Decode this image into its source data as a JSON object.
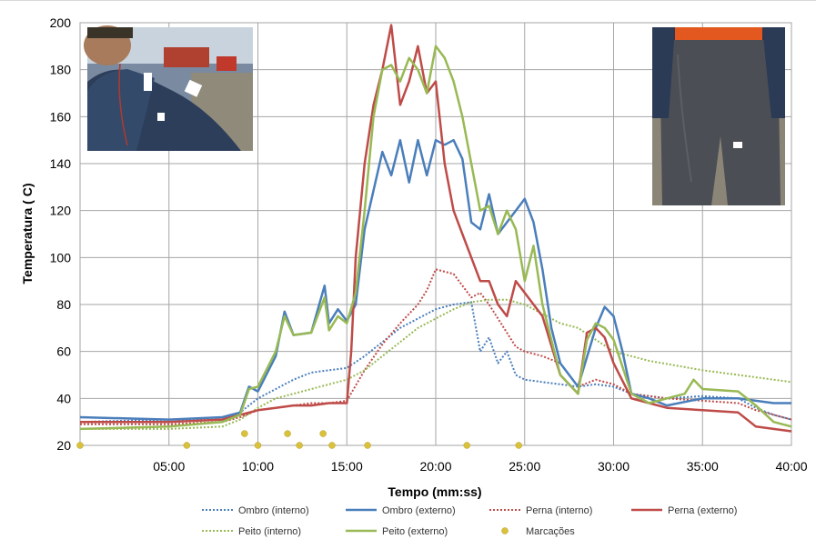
{
  "chart_data": {
    "type": "line",
    "xlabel": "Tempo (mm:ss)",
    "ylabel": "Temperatura ( C)",
    "x_unit": "mm:ss",
    "xlim": [
      "00:00",
      "40:00"
    ],
    "ylim": [
      20,
      200
    ],
    "x_tick_labels": [
      "05:00",
      "10:00",
      "15:00",
      "20:00",
      "25:00",
      "30:00",
      "35:00",
      "40:00"
    ],
    "y_tick_labels": [
      "20",
      "40",
      "60",
      "80",
      "100",
      "120",
      "140",
      "160",
      "180",
      "200"
    ],
    "grid": true,
    "legend_position": "bottom",
    "colors": {
      "ombro": "#4a7ebb",
      "perna": "#be4b48",
      "peito": "#98b954",
      "marcacoes": "#d9c13c"
    },
    "series": [
      {
        "name": "Ombro (interno)",
        "style": "dotted",
        "color": "#4a7ebb",
        "x": [
          "00:00",
          "05:00",
          "08:00",
          "09:00",
          "10:00",
          "11:00",
          "12:00",
          "13:00",
          "14:00",
          "15:00",
          "16:00",
          "17:00",
          "18:00",
          "19:00",
          "20:00",
          "21:00",
          "22:00",
          "22:30",
          "23:00",
          "23:30",
          "24:00",
          "24:30",
          "25:00",
          "26:00",
          "27:00",
          "28:00",
          "29:00",
          "30:00",
          "31:00",
          "33:00",
          "35:00",
          "37:00",
          "38:00",
          "39:00",
          "40:00"
        ],
        "y": [
          30,
          31,
          31,
          34,
          40,
          44,
          48,
          51,
          52,
          53,
          58,
          64,
          70,
          74,
          78,
          80,
          81,
          60,
          66,
          55,
          60,
          50,
          48,
          47,
          46,
          45,
          46,
          45,
          42,
          40,
          41,
          40,
          36,
          33,
          31
        ]
      },
      {
        "name": "Ombro (externo)",
        "style": "solid",
        "color": "#4a7ebb",
        "x": [
          "00:00",
          "05:00",
          "08:00",
          "09:00",
          "09:30",
          "10:00",
          "11:00",
          "11:30",
          "12:00",
          "13:00",
          "13:45",
          "14:00",
          "14:30",
          "15:00",
          "15:30",
          "16:00",
          "17:00",
          "17:30",
          "18:00",
          "18:30",
          "19:00",
          "19:30",
          "20:00",
          "20:30",
          "21:00",
          "21:30",
          "22:00",
          "22:30",
          "23:00",
          "23:30",
          "24:00",
          "24:30",
          "25:00",
          "25:30",
          "26:00",
          "26:30",
          "27:00",
          "28:00",
          "29:00",
          "29:30",
          "30:00",
          "30:30",
          "31:00",
          "32:00",
          "33:00",
          "35:00",
          "37:00",
          "38:00",
          "39:00",
          "40:00"
        ],
        "y": [
          32,
          31,
          32,
          34,
          45,
          43,
          58,
          77,
          67,
          68,
          88,
          72,
          78,
          73,
          80,
          112,
          145,
          135,
          150,
          132,
          150,
          135,
          150,
          148,
          150,
          142,
          115,
          112,
          127,
          110,
          115,
          120,
          125,
          115,
          95,
          70,
          55,
          45,
          70,
          79,
          75,
          60,
          42,
          40,
          37,
          40,
          40,
          39,
          38,
          38
        ]
      },
      {
        "name": "Perna (interno)",
        "style": "dotted",
        "color": "#be4b48",
        "x": [
          "00:00",
          "05:00",
          "08:00",
          "09:00",
          "10:00",
          "11:00",
          "12:00",
          "13:00",
          "14:00",
          "15:00",
          "16:00",
          "17:00",
          "18:00",
          "19:00",
          "19:30",
          "20:00",
          "21:00",
          "22:00",
          "22:30",
          "23:00",
          "24:00",
          "24:30",
          "25:00",
          "26:00",
          "27:00",
          "28:00",
          "29:00",
          "30:00",
          "31:00",
          "33:00",
          "35:00",
          "37:00",
          "38:00",
          "39:00",
          "40:00"
        ],
        "y": [
          29,
          29,
          30,
          32,
          35,
          36,
          37,
          38,
          38,
          39,
          52,
          63,
          72,
          80,
          86,
          95,
          93,
          83,
          85,
          80,
          68,
          62,
          60,
          58,
          55,
          45,
          48,
          46,
          42,
          40,
          39,
          38,
          35,
          33,
          31
        ]
      },
      {
        "name": "Perna (externo)",
        "style": "solid",
        "color": "#be4b48",
        "x": [
          "00:00",
          "05:00",
          "08:00",
          "09:00",
          "10:00",
          "11:00",
          "12:00",
          "13:00",
          "14:00",
          "15:00",
          "15:15",
          "15:30",
          "16:00",
          "16:30",
          "17:00",
          "17:30",
          "18:00",
          "18:30",
          "19:00",
          "19:30",
          "20:00",
          "20:30",
          "21:00",
          "21:30",
          "22:00",
          "22:30",
          "23:00",
          "23:30",
          "24:00",
          "24:30",
          "25:00",
          "25:30",
          "26:00",
          "27:00",
          "28:00",
          "28:30",
          "29:00",
          "29:30",
          "30:00",
          "31:00",
          "32:00",
          "33:00",
          "35:00",
          "37:00",
          "38:00",
          "39:00",
          "40:00"
        ],
        "y": [
          30,
          30,
          31,
          33,
          35,
          36,
          37,
          37,
          38,
          38,
          60,
          100,
          140,
          165,
          180,
          199,
          165,
          175,
          190,
          170,
          175,
          140,
          120,
          110,
          100,
          90,
          90,
          80,
          75,
          90,
          85,
          80,
          75,
          50,
          42,
          68,
          70,
          66,
          55,
          40,
          38,
          36,
          35,
          34,
          28,
          27,
          26
        ]
      },
      {
        "name": "Peito (interno)",
        "style": "dotted",
        "color": "#98b954",
        "x": [
          "00:00",
          "05:00",
          "08:00",
          "09:00",
          "10:00",
          "11:00",
          "12:00",
          "13:00",
          "14:00",
          "15:00",
          "16:00",
          "17:00",
          "18:00",
          "19:00",
          "20:00",
          "21:00",
          "22:00",
          "23:00",
          "24:00",
          "25:00",
          "26:00",
          "27:00",
          "28:00",
          "30:00",
          "32:00",
          "35:00",
          "37:00",
          "39:00",
          "40:00"
        ],
        "y": [
          27,
          27,
          28,
          31,
          36,
          40,
          42,
          44,
          46,
          48,
          52,
          58,
          64,
          70,
          74,
          78,
          81,
          82,
          82,
          80,
          76,
          72,
          70,
          60,
          56,
          52,
          50,
          48,
          47
        ]
      },
      {
        "name": "Peito (externo)",
        "style": "solid",
        "color": "#98b954",
        "x": [
          "00:00",
          "05:00",
          "08:00",
          "09:00",
          "09:30",
          "10:00",
          "11:00",
          "11:30",
          "12:00",
          "13:00",
          "13:45",
          "14:00",
          "14:30",
          "15:00",
          "15:30",
          "16:00",
          "16:30",
          "17:00",
          "17:30",
          "18:00",
          "18:30",
          "19:00",
          "19:30",
          "20:00",
          "20:30",
          "21:00",
          "21:30",
          "22:00",
          "22:30",
          "23:00",
          "23:30",
          "24:00",
          "24:30",
          "25:00",
          "25:30",
          "26:00",
          "27:00",
          "28:00",
          "28:30",
          "29:00",
          "29:30",
          "30:00",
          "31:00",
          "32:00",
          "33:00",
          "34:00",
          "34:30",
          "35:00",
          "37:00",
          "38:00",
          "39:00",
          "40:00"
        ],
        "y": [
          27,
          28,
          30,
          33,
          44,
          45,
          60,
          75,
          67,
          68,
          83,
          69,
          75,
          72,
          85,
          120,
          160,
          180,
          182,
          175,
          185,
          180,
          170,
          190,
          185,
          175,
          160,
          140,
          120,
          122,
          110,
          120,
          112,
          90,
          105,
          80,
          50,
          42,
          65,
          72,
          70,
          65,
          42,
          38,
          40,
          42,
          48,
          44,
          43,
          37,
          30,
          28
        ]
      }
    ],
    "markers": {
      "name": "Marcações",
      "color": "#d9c13c",
      "points": [
        {
          "x": "00:00",
          "y": 20
        },
        {
          "x": "06:00",
          "y": 20
        },
        {
          "x": "09:15",
          "y": 25
        },
        {
          "x": "10:00",
          "y": 20
        },
        {
          "x": "11:40",
          "y": 25
        },
        {
          "x": "12:20",
          "y": 20
        },
        {
          "x": "13:40",
          "y": 25
        },
        {
          "x": "14:10",
          "y": 20
        },
        {
          "x": "16:10",
          "y": 20
        },
        {
          "x": "21:45",
          "y": 20
        },
        {
          "x": "24:40",
          "y": 20
        }
      ]
    },
    "legend": [
      {
        "label": "Ombro (interno)",
        "color": "#4a7ebb",
        "style": "dotted"
      },
      {
        "label": "Ombro (externo)",
        "color": "#4a7ebb",
        "style": "solid"
      },
      {
        "label": "Perna (interno)",
        "color": "#be4b48",
        "style": "dotted"
      },
      {
        "label": "Perna (externo)",
        "color": "#be4b48",
        "style": "solid"
      },
      {
        "label": "Peito (interno)",
        "color": "#98b954",
        "style": "dotted"
      },
      {
        "label": "Peito (externo)",
        "color": "#98b954",
        "style": "solid"
      },
      {
        "label": "Marcações",
        "color": "#d9c13c",
        "style": "marker"
      }
    ]
  }
}
